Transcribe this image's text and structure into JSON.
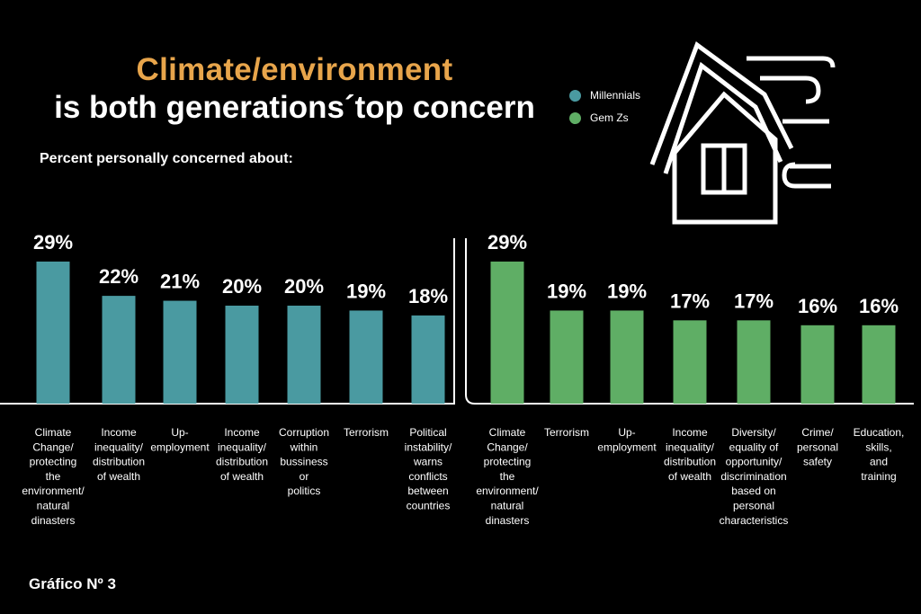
{
  "header": {
    "title_line1": "Climate/environment",
    "title_line2": "is both generations´top concern",
    "subtitle": "Percent personally concerned about:"
  },
  "legend": [
    {
      "name": "Millennials",
      "color": "#4a9aa1"
    },
    {
      "name": "Gem Zs",
      "color": "#5fae65"
    }
  ],
  "footer": "Gráfico Nº 3",
  "icons": [
    "house-wind-icon"
  ],
  "chart_data": [
    {
      "type": "bar",
      "series_name": "Millennials",
      "color": "#4a9aa1",
      "categories": [
        "Climate Change/ protecting the environment/ natural dinasters",
        "Income inequality/ distribution of wealth",
        "Up- employment",
        "Income inequality/ distribution of wealth",
        "Corruption within bussiness or politics",
        "Terrorism",
        "Political instability/ warns conflicts between countries"
      ],
      "category_lines": [
        [
          "Climate",
          "Change/",
          "protecting",
          "the",
          "environment/",
          "natural",
          "dinasters"
        ],
        [
          "Income",
          "inequality/",
          "distribution",
          "of wealth"
        ],
        [
          "Up-",
          "employment"
        ],
        [
          "Income",
          "inequality/",
          "distribution",
          "of wealth"
        ],
        [
          "Corruption",
          "within",
          "bussiness",
          "or",
          "politics"
        ],
        [
          "Terrorism"
        ],
        [
          "Political",
          "instability/",
          "warns",
          "conflicts",
          "between",
          "countries"
        ]
      ],
      "values": [
        29,
        22,
        21,
        20,
        20,
        19,
        18
      ],
      "labels": [
        "29%",
        "22%",
        "21%",
        "20%",
        "20%",
        "19%",
        "18%"
      ],
      "unit": "%"
    },
    {
      "type": "bar",
      "series_name": "Gem Zs",
      "color": "#5fae65",
      "categories": [
        "Climate Change/ protecting the environment/ natural dinasters",
        "Terrorism",
        "Up- employment",
        "Income inequality/ distribution of wealth",
        "Diversity/ equality of opportunity/ discrimination based on personal characteristics",
        "Crime/ personal safety",
        "Education, skills, and training"
      ],
      "category_lines": [
        [
          "Climate",
          "Change/",
          "protecting",
          "the",
          "environment/",
          "natural",
          "dinasters"
        ],
        [
          "Terrorism"
        ],
        [
          "Up-",
          "employment"
        ],
        [
          "Income",
          "inequality/",
          "distribution",
          "of wealth"
        ],
        [
          "Diversity/",
          "equality of",
          "opportunity/",
          "discrimination",
          "based on",
          "personal",
          "characteristics"
        ],
        [
          "Crime/",
          "personal",
          "safety"
        ],
        [
          "Education,",
          "skills,",
          "and",
          "training"
        ]
      ],
      "values": [
        29,
        19,
        19,
        17,
        17,
        16,
        16
      ],
      "labels": [
        "29%",
        "19%",
        "19%",
        "17%",
        "17%",
        "16%",
        "16%"
      ],
      "unit": "%"
    }
  ]
}
